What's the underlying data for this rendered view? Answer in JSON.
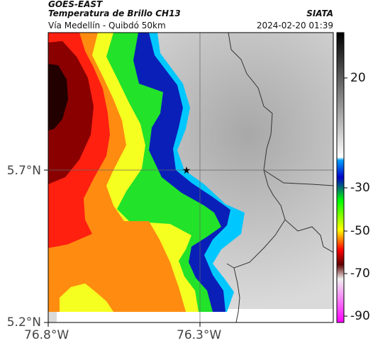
{
  "header": {
    "satellite": "GOES-EAST",
    "product": "Temperatura de Brillo CH13",
    "location": "Vía Medellín - Quibdó 50km",
    "source": "SIATA",
    "datetime": "2024-02-20 01:39"
  },
  "axes": {
    "lat_ticks": [
      "5.7°N",
      "5.2°N"
    ],
    "lon_ticks": [
      "76.8°W",
      "76.3°W"
    ]
  },
  "colorbar": {
    "ticks": [
      "20",
      "-30",
      "-50",
      "-70",
      "-90"
    ],
    "stops": [
      "#000000",
      "#ffffff",
      "#00a0ff",
      "#0000c8",
      "#00ff00",
      "#ffff00",
      "#ff0000",
      "#600000",
      "#ffffff",
      "#ff00ff"
    ]
  },
  "map": {
    "marker": "star-marker",
    "colors": {
      "clear": "#d8d8d8",
      "cyan": "#00c8ff",
      "blue": "#0a1fb8",
      "green": "#22e22a",
      "yellow": "#f5ff20",
      "orange": "#ff8c10",
      "red": "#ff2010",
      "darkred": "#8a0000"
    }
  }
}
